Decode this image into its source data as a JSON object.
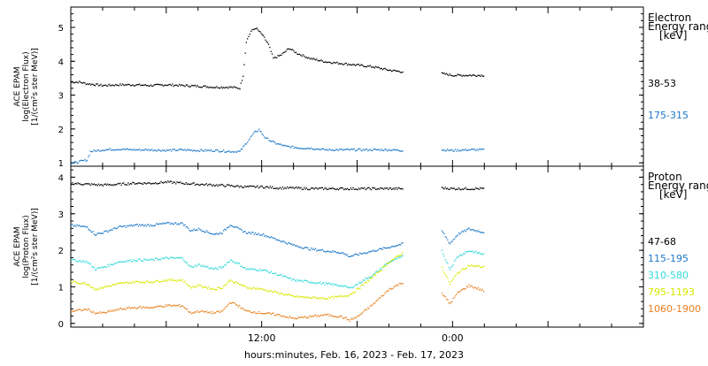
{
  "chart_data": {
    "type": "scatter",
    "x_axis": {
      "label": "hours:minutes, Feb. 16, 2023 - Feb. 17, 2023",
      "start_hour": 0,
      "end_hour": 36,
      "ticks": [
        {
          "hour": 12,
          "label": "12:00"
        },
        {
          "hour": 24,
          "label": "0:00"
        }
      ],
      "data_gap_hours": [
        20.9,
        23.3
      ],
      "data_end_hour": 26.0
    },
    "panels": [
      {
        "ylabel_lines": [
          "ACE EPAM",
          "log(Electron Flux)",
          "[1/(cm²s ster MeV)]"
        ],
        "ylim": [
          0.9,
          5.6
        ],
        "yticks": [
          1,
          2,
          3,
          4,
          5
        ],
        "legend_title": [
          "Electron",
          "Energy range",
          "[keV]"
        ],
        "series": [
          {
            "name": "38-53",
            "color": "#000000",
            "points": [
              [
                0,
                3.4
              ],
              [
                0.5,
                3.4
              ],
              [
                1.0,
                3.35
              ],
              [
                2,
                3.3
              ],
              [
                3,
                3.32
              ],
              [
                4,
                3.32
              ],
              [
                5,
                3.3
              ],
              [
                6,
                3.32
              ],
              [
                7,
                3.3
              ],
              [
                8,
                3.28
              ],
              [
                9,
                3.25
              ],
              [
                10,
                3.25
              ],
              [
                10.6,
                3.22
              ],
              [
                10.8,
                3.6
              ],
              [
                11.0,
                4.6
              ],
              [
                11.3,
                4.9
              ],
              [
                11.6,
                5.0
              ],
              [
                12,
                4.8
              ],
              [
                12.4,
                4.5
              ],
              [
                12.7,
                4.1
              ],
              [
                13.2,
                4.2
              ],
              [
                13.7,
                4.4
              ],
              [
                14.2,
                4.25
              ],
              [
                15,
                4.1
              ],
              [
                16,
                4.0
              ],
              [
                17,
                3.95
              ],
              [
                18,
                3.9
              ],
              [
                19,
                3.85
              ],
              [
                20,
                3.75
              ],
              [
                20.9,
                3.7
              ],
              [
                23.3,
                3.65
              ],
              [
                24,
                3.6
              ],
              [
                25,
                3.6
              ],
              [
                26,
                3.6
              ]
            ]
          },
          {
            "name": "175-315",
            "color": "#1e78c8",
            "points": [
              [
                0,
                1.0
              ],
              [
                0.5,
                1.05
              ],
              [
                1.0,
                1.1
              ],
              [
                1.2,
                1.35
              ],
              [
                2,
                1.4
              ],
              [
                3,
                1.42
              ],
              [
                4,
                1.4
              ],
              [
                5,
                1.4
              ],
              [
                6,
                1.38
              ],
              [
                7,
                1.4
              ],
              [
                8,
                1.38
              ],
              [
                9,
                1.38
              ],
              [
                10,
                1.35
              ],
              [
                10.6,
                1.35
              ],
              [
                11.0,
                1.6
              ],
              [
                11.5,
                1.9
              ],
              [
                11.8,
                2.0
              ],
              [
                12.2,
                1.75
              ],
              [
                12.8,
                1.6
              ],
              [
                13.5,
                1.5
              ],
              [
                14.5,
                1.45
              ],
              [
                15,
                1.45
              ],
              [
                16,
                1.4
              ],
              [
                17,
                1.4
              ],
              [
                18,
                1.4
              ],
              [
                19,
                1.4
              ],
              [
                20,
                1.4
              ],
              [
                20.9,
                1.38
              ],
              [
                23.3,
                1.4
              ],
              [
                24,
                1.38
              ],
              [
                25,
                1.4
              ],
              [
                26,
                1.4
              ]
            ]
          }
        ]
      },
      {
        "ylabel_lines": [
          "ACE EPAM",
          "log(Proton Flux)",
          "[1/(cm²s ster MeV)]"
        ],
        "ylim": [
          -0.1,
          4.3
        ],
        "yticks": [
          0,
          1,
          2,
          3,
          4
        ],
        "legend_title": [
          "Proton",
          "Energy range",
          "[keV]"
        ],
        "series": [
          {
            "name": "47-68",
            "color": "#000000",
            "points": [
              [
                0,
                3.85
              ],
              [
                1,
                3.82
              ],
              [
                2,
                3.8
              ],
              [
                3,
                3.82
              ],
              [
                4,
                3.85
              ],
              [
                5,
                3.85
              ],
              [
                6,
                3.88
              ],
              [
                7,
                3.85
              ],
              [
                8,
                3.82
              ],
              [
                9,
                3.8
              ],
              [
                10,
                3.78
              ],
              [
                11,
                3.75
              ],
              [
                12,
                3.75
              ],
              [
                13,
                3.72
              ],
              [
                14,
                3.72
              ],
              [
                15,
                3.7
              ],
              [
                16,
                3.7
              ],
              [
                17,
                3.7
              ],
              [
                18,
                3.7
              ],
              [
                19,
                3.7
              ],
              [
                20,
                3.7
              ],
              [
                20.9,
                3.7
              ],
              [
                23.3,
                3.72
              ],
              [
                24,
                3.7
              ],
              [
                25,
                3.7
              ],
              [
                26,
                3.7
              ]
            ]
          },
          {
            "name": "115-195",
            "color": "#1e78c8",
            "points": [
              [
                0,
                2.7
              ],
              [
                1,
                2.65
              ],
              [
                1.5,
                2.45
              ],
              [
                2,
                2.5
              ],
              [
                3,
                2.65
              ],
              [
                4,
                2.7
              ],
              [
                5,
                2.7
              ],
              [
                6,
                2.75
              ],
              [
                7,
                2.75
              ],
              [
                7.5,
                2.55
              ],
              [
                8,
                2.6
              ],
              [
                9,
                2.45
              ],
              [
                9.5,
                2.5
              ],
              [
                10,
                2.72
              ],
              [
                10.5,
                2.6
              ],
              [
                11,
                2.5
              ],
              [
                12,
                2.45
              ],
              [
                13,
                2.3
              ],
              [
                14,
                2.15
              ],
              [
                15,
                2.05
              ],
              [
                16,
                2.0
              ],
              [
                17,
                1.95
              ],
              [
                17.5,
                1.85
              ],
              [
                18,
                1.9
              ],
              [
                19,
                2.0
              ],
              [
                20,
                2.1
              ],
              [
                20.9,
                2.2
              ],
              [
                23.3,
                2.55
              ],
              [
                23.8,
                2.2
              ],
              [
                24.3,
                2.45
              ],
              [
                25,
                2.6
              ],
              [
                26,
                2.5
              ]
            ]
          },
          {
            "name": "310-580",
            "color": "#33d8d8",
            "points": [
              [
                0,
                1.75
              ],
              [
                1,
                1.7
              ],
              [
                1.5,
                1.5
              ],
              [
                2,
                1.55
              ],
              [
                3,
                1.7
              ],
              [
                4,
                1.75
              ],
              [
                5,
                1.75
              ],
              [
                6,
                1.8
              ],
              [
                7,
                1.8
              ],
              [
                7.5,
                1.55
              ],
              [
                8,
                1.62
              ],
              [
                9,
                1.5
              ],
              [
                9.5,
                1.55
              ],
              [
                10,
                1.75
              ],
              [
                10.5,
                1.65
              ],
              [
                11,
                1.5
              ],
              [
                12,
                1.48
              ],
              [
                13,
                1.35
              ],
              [
                14,
                1.2
              ],
              [
                15,
                1.15
              ],
              [
                16,
                1.1
              ],
              [
                17,
                1.05
              ],
              [
                17.5,
                0.98
              ],
              [
                18,
                1.1
              ],
              [
                19,
                1.35
              ],
              [
                20,
                1.7
              ],
              [
                20.9,
                1.85
              ],
              [
                23.3,
                2.0
              ],
              [
                23.8,
                1.5
              ],
              [
                24.3,
                1.85
              ],
              [
                25,
                2.0
              ],
              [
                26,
                1.9
              ]
            ]
          },
          {
            "name": "795-1193",
            "color": "#d8e800",
            "points": [
              [
                0,
                1.15
              ],
              [
                1,
                1.1
              ],
              [
                1.5,
                0.95
              ],
              [
                2,
                1.0
              ],
              [
                3,
                1.1
              ],
              [
                4,
                1.15
              ],
              [
                5,
                1.15
              ],
              [
                6,
                1.2
              ],
              [
                7,
                1.2
              ],
              [
                7.5,
                1.0
              ],
              [
                8,
                1.05
              ],
              [
                9,
                0.95
              ],
              [
                9.5,
                1.0
              ],
              [
                10,
                1.2
              ],
              [
                10.5,
                1.1
              ],
              [
                11,
                1.0
              ],
              [
                12,
                0.95
              ],
              [
                13,
                0.85
              ],
              [
                14,
                0.75
              ],
              [
                15,
                0.72
              ],
              [
                16,
                0.7
              ],
              [
                17,
                0.75
              ],
              [
                17.5,
                0.8
              ],
              [
                18,
                0.95
              ],
              [
                19,
                1.3
              ],
              [
                20,
                1.7
              ],
              [
                20.9,
                1.95
              ],
              [
                23.3,
                1.55
              ],
              [
                23.8,
                1.1
              ],
              [
                24.3,
                1.4
              ],
              [
                25,
                1.6
              ],
              [
                26,
                1.55
              ]
            ]
          },
          {
            "name": "1060-1900",
            "color": "#e8801e",
            "points": [
              [
                0,
                0.35
              ],
              [
                1,
                0.4
              ],
              [
                1.5,
                0.3
              ],
              [
                2,
                0.3
              ],
              [
                3,
                0.4
              ],
              [
                4,
                0.45
              ],
              [
                5,
                0.45
              ],
              [
                6,
                0.5
              ],
              [
                7,
                0.5
              ],
              [
                7.5,
                0.3
              ],
              [
                8,
                0.35
              ],
              [
                9,
                0.3
              ],
              [
                9.5,
                0.35
              ],
              [
                10,
                0.6
              ],
              [
                10.5,
                0.5
              ],
              [
                11,
                0.35
              ],
              [
                12,
                0.3
              ],
              [
                13,
                0.25
              ],
              [
                14,
                0.15
              ],
              [
                15,
                0.2
              ],
              [
                16,
                0.25
              ],
              [
                17,
                0.2
              ],
              [
                17.5,
                0.1
              ],
              [
                18,
                0.2
              ],
              [
                19,
                0.55
              ],
              [
                20,
                0.95
              ],
              [
                20.9,
                1.15
              ],
              [
                23.3,
                0.85
              ],
              [
                23.8,
                0.55
              ],
              [
                24.3,
                0.85
              ],
              [
                25,
                1.05
              ],
              [
                26,
                0.9
              ]
            ]
          }
        ]
      }
    ]
  }
}
